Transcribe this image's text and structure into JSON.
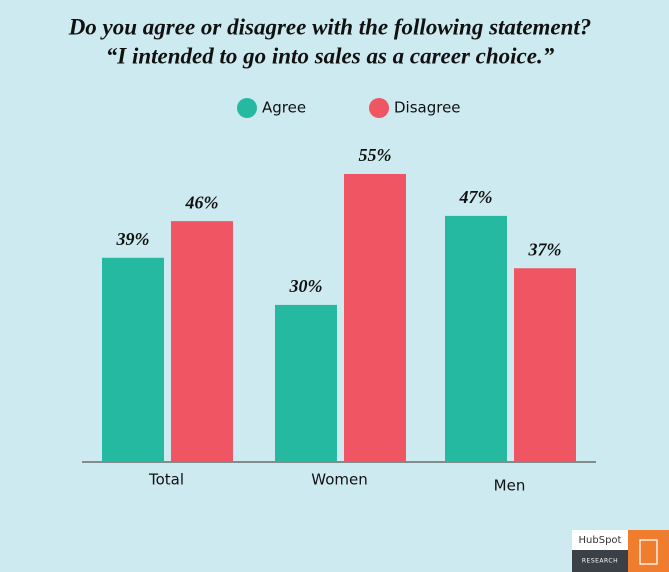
{
  "chart_data": {
    "type": "bar",
    "title": "Do you agree or disagree with the following statement?",
    "subtitle": "“I intended to go into sales as a career choice.”",
    "categories": [
      "Total",
      "Women",
      "Men"
    ],
    "series": [
      {
        "name": "Agree",
        "color": "#26b9a1",
        "values": [
          39,
          30,
          47
        ],
        "value_labels": [
          "39%",
          "30%",
          "47%"
        ]
      },
      {
        "name": "Disagree",
        "color": "#ef5562",
        "values": [
          46,
          55,
          37
        ],
        "value_labels": [
          "46%",
          "55%",
          "37%"
        ]
      }
    ]
  },
  "branding": {
    "logo": "HubSpot",
    "label": "RESEARCH"
  }
}
